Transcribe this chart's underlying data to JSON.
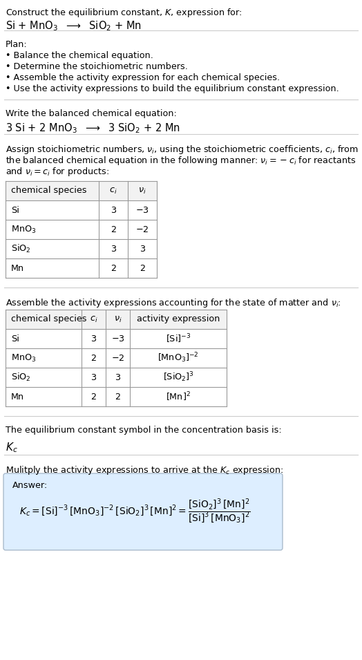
{
  "bg_color": "#ffffff",
  "text_color": "#000000",
  "title_line1": "Construct the equilibrium constant, $K$, expression for:",
  "title_line2": "Si + MnO$_3$  $\\longrightarrow$  SiO$_2$ + Mn",
  "plan_header": "Plan:",
  "plan_items": [
    "• Balance the chemical equation.",
    "• Determine the stoichiometric numbers.",
    "• Assemble the activity expression for each chemical species.",
    "• Use the activity expressions to build the equilibrium constant expression."
  ],
  "balanced_header": "Write the balanced chemical equation:",
  "balanced_eq": "3 Si + 2 MnO$_3$  $\\longrightarrow$  3 SiO$_2$ + 2 Mn",
  "table1_headers": [
    "chemical species",
    "$c_i$",
    "$\\nu_i$"
  ],
  "table1_rows": [
    [
      "Si",
      "3",
      "$-3$"
    ],
    [
      "MnO$_3$",
      "2",
      "$-2$"
    ],
    [
      "SiO$_2$",
      "3",
      "3"
    ],
    [
      "Mn",
      "2",
      "2"
    ]
  ],
  "assemble_para": "Assemble the activity expressions accounting for the state of matter and $\\nu_i$:",
  "table2_headers": [
    "chemical species",
    "$c_i$",
    "$\\nu_i$",
    "activity expression"
  ],
  "table2_rows": [
    [
      "Si",
      "3",
      "$-3$",
      "[Si]$^{-3}$"
    ],
    [
      "MnO$_3$",
      "2",
      "$-2$",
      "[MnO$_3$]$^{-2}$"
    ],
    [
      "SiO$_2$",
      "3",
      "3",
      "[SiO$_2$]$^3$"
    ],
    [
      "Mn",
      "2",
      "2",
      "[Mn]$^2$"
    ]
  ],
  "kc_para": "The equilibrium constant symbol in the concentration basis is:",
  "kc_symbol": "$K_c$",
  "multiply_para": "Mulitply the activity expressions to arrive at the $K_c$ expression:",
  "answer_label": "Answer:",
  "answer_bg": "#ddeeff",
  "answer_border": "#aabbcc",
  "table_header_color": "#f2f2f2",
  "table_line_color": "#999999",
  "sep_color": "#cccccc"
}
